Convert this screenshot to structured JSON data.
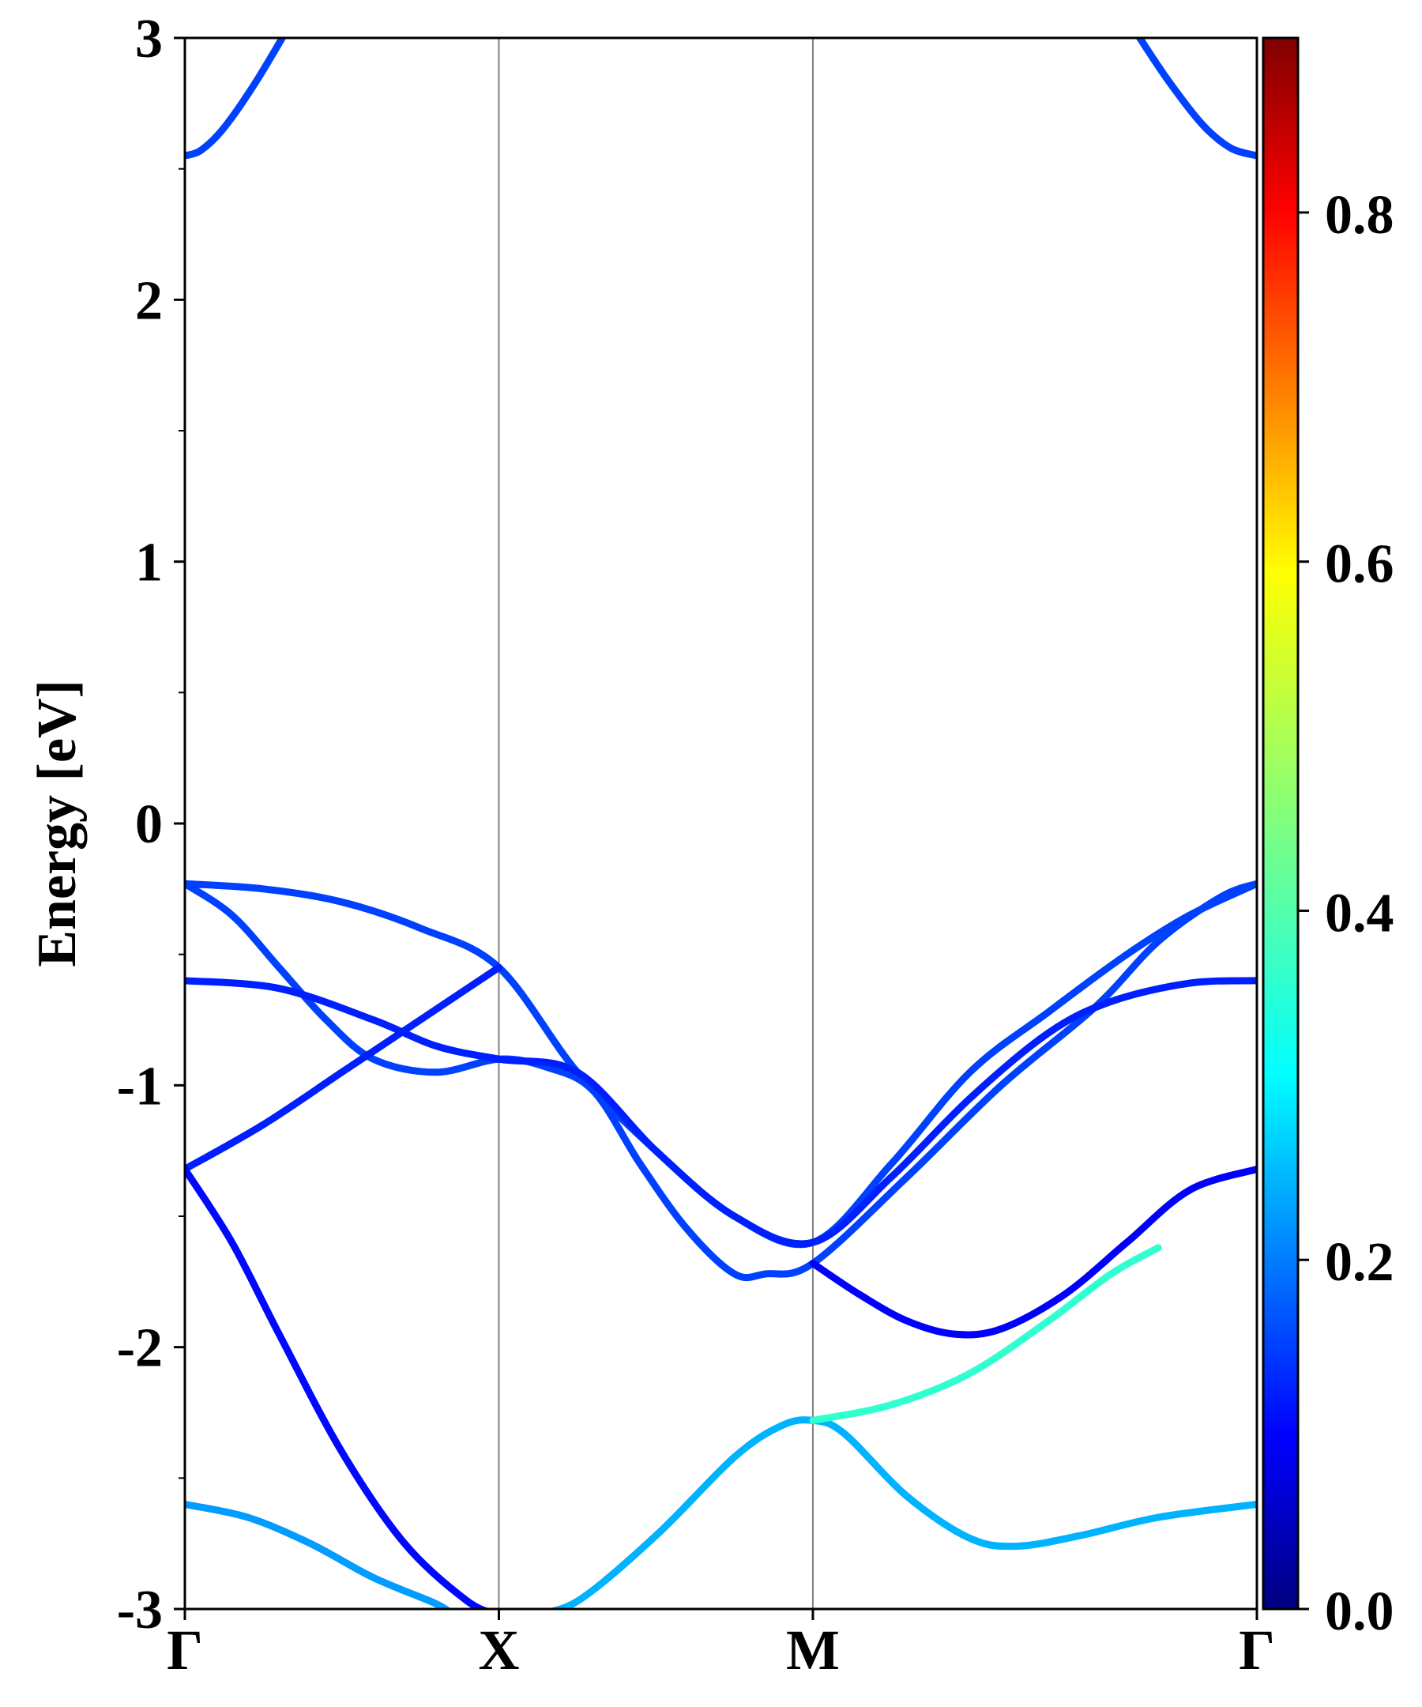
{
  "chart_data": {
    "type": "line",
    "ylabel": "Energy [eV]",
    "xlabel": "",
    "ylim": [
      -3,
      3
    ],
    "yticks": [
      -3,
      -2,
      -1,
      0,
      1,
      2,
      3
    ],
    "yminor_step": 0.5,
    "kpoints": [
      {
        "label": "Γ",
        "x": 0.0
      },
      {
        "label": "X",
        "x": 1.0
      },
      {
        "label": "M",
        "x": 2.0
      },
      {
        "label": "Γ",
        "x": 3.414
      }
    ],
    "grid": false,
    "colorbar": {
      "colormap": "jet",
      "range": [
        0,
        0.9
      ],
      "ticks": [
        "0.0",
        "0.2",
        "0.4",
        "0.6",
        "0.8"
      ],
      "tick_values": [
        0.0,
        0.2,
        0.4,
        0.6,
        0.8
      ]
    },
    "series": [
      {
        "weight": 0.17,
        "points": [
          [
            0.0,
            2.55
          ],
          [
            0.05,
            2.57
          ],
          [
            0.12,
            2.65
          ],
          [
            0.22,
            2.82
          ],
          [
            0.32,
            3.02
          ],
          [
            3.03,
            3.02
          ],
          [
            3.13,
            2.84
          ],
          [
            3.24,
            2.67
          ],
          [
            3.33,
            2.58
          ],
          [
            3.414,
            2.55
          ]
        ]
      },
      {
        "weight": 0.17,
        "points": [
          [
            0.0,
            -0.23
          ],
          [
            0.25,
            -0.25
          ],
          [
            0.5,
            -0.3
          ],
          [
            0.75,
            -0.4
          ],
          [
            1.0,
            -0.55
          ],
          [
            1.25,
            -0.95
          ],
          [
            1.5,
            -1.25
          ],
          [
            1.75,
            -1.5
          ],
          [
            2.0,
            -1.6
          ],
          [
            2.25,
            -1.3
          ],
          [
            2.5,
            -0.95
          ],
          [
            2.75,
            -0.72
          ],
          [
            3.0,
            -0.5
          ],
          [
            3.2,
            -0.35
          ],
          [
            3.414,
            -0.23
          ]
        ]
      },
      {
        "weight": 0.17,
        "points": [
          [
            0.0,
            -0.23
          ],
          [
            0.15,
            -0.35
          ],
          [
            0.3,
            -0.55
          ],
          [
            0.45,
            -0.75
          ],
          [
            0.6,
            -0.9
          ],
          [
            0.8,
            -0.95
          ],
          [
            1.0,
            -0.9
          ],
          [
            1.15,
            -0.93
          ],
          [
            1.3,
            -1.02
          ],
          [
            1.45,
            -1.3
          ],
          [
            1.6,
            -1.55
          ],
          [
            1.75,
            -1.72
          ],
          [
            1.85,
            -1.72
          ],
          [
            2.0,
            -1.68
          ],
          [
            2.3,
            -1.35
          ],
          [
            2.6,
            -1.0
          ],
          [
            2.9,
            -0.7
          ],
          [
            3.1,
            -0.45
          ],
          [
            3.3,
            -0.28
          ],
          [
            3.414,
            -0.23
          ]
        ]
      },
      {
        "weight": 0.14,
        "points": [
          [
            0.0,
            -0.6
          ],
          [
            0.3,
            -0.63
          ],
          [
            0.6,
            -0.75
          ],
          [
            0.8,
            -0.85
          ],
          [
            1.0,
            -0.9
          ],
          [
            1.25,
            -0.95
          ],
          [
            1.5,
            -1.25
          ],
          [
            1.75,
            -1.5
          ],
          [
            2.0,
            -1.6
          ],
          [
            2.25,
            -1.35
          ],
          [
            2.5,
            -1.05
          ],
          [
            2.75,
            -0.8
          ],
          [
            2.95,
            -0.68
          ],
          [
            3.2,
            -0.61
          ],
          [
            3.414,
            -0.6
          ]
        ]
      },
      {
        "weight": 0.14,
        "points": [
          [
            0.0,
            -1.32
          ],
          [
            0.25,
            -1.15
          ],
          [
            0.5,
            -0.95
          ],
          [
            0.75,
            -0.75
          ],
          [
            1.0,
            -0.55
          ]
        ]
      },
      {
        "weight": 0.12,
        "points": [
          [
            0.0,
            -1.32
          ],
          [
            0.15,
            -1.6
          ],
          [
            0.3,
            -1.95
          ],
          [
            0.5,
            -2.4
          ],
          [
            0.7,
            -2.75
          ],
          [
            0.9,
            -2.97
          ],
          [
            1.0,
            -3.02
          ]
        ]
      },
      {
        "weight": 0.11,
        "points": [
          [
            2.0,
            -1.68
          ],
          [
            2.15,
            -1.8
          ],
          [
            2.3,
            -1.9
          ],
          [
            2.45,
            -1.95
          ],
          [
            2.6,
            -1.93
          ],
          [
            2.8,
            -1.8
          ],
          [
            3.0,
            -1.6
          ],
          [
            3.2,
            -1.4
          ],
          [
            3.414,
            -1.32
          ]
        ]
      },
      {
        "weight": 0.25,
        "points": [
          [
            0.0,
            -2.6
          ],
          [
            0.2,
            -2.65
          ],
          [
            0.4,
            -2.75
          ],
          [
            0.6,
            -2.88
          ],
          [
            0.8,
            -2.98
          ],
          [
            0.85,
            -3.02
          ]
        ]
      },
      {
        "weight": 0.27,
        "points": [
          [
            1.1,
            -3.02
          ],
          [
            1.25,
            -2.97
          ],
          [
            1.5,
            -2.72
          ],
          [
            1.75,
            -2.42
          ],
          [
            1.9,
            -2.3
          ],
          [
            2.0,
            -2.28
          ],
          [
            2.1,
            -2.33
          ],
          [
            2.3,
            -2.57
          ],
          [
            2.5,
            -2.73
          ],
          [
            2.65,
            -2.76
          ],
          [
            2.85,
            -2.72
          ],
          [
            3.1,
            -2.65
          ],
          [
            3.414,
            -2.6
          ]
        ]
      },
      {
        "weight": 0.38,
        "points": [
          [
            2.0,
            -2.28
          ],
          [
            2.25,
            -2.22
          ],
          [
            2.5,
            -2.1
          ],
          [
            2.75,
            -1.9
          ],
          [
            2.95,
            -1.72
          ],
          [
            3.1,
            -1.62
          ]
        ]
      }
    ]
  }
}
